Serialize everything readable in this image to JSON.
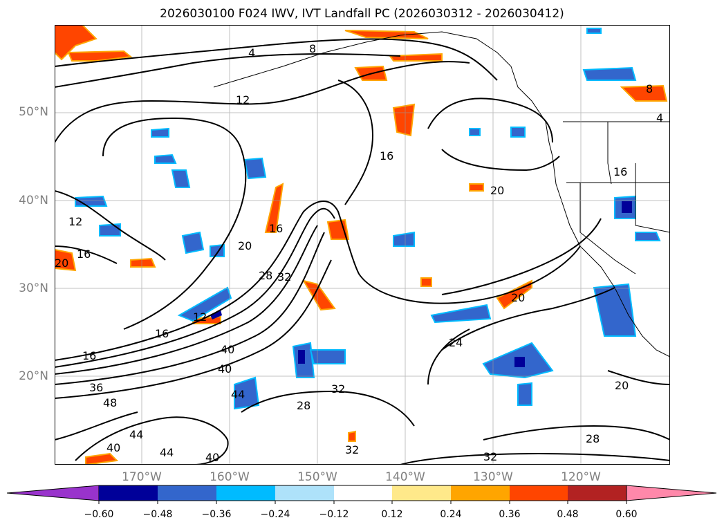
{
  "title": "2026030100 F024 IWV, IVT Landfall PC (2026030312 - 2026030412)",
  "map": {
    "lat_labels": [
      "50°N",
      "40°N",
      "30°N",
      "20°N"
    ],
    "lon_labels": [
      "170°W",
      "160°W",
      "150°W",
      "140°W",
      "130°W",
      "120°W"
    ],
    "contour_labels": [
      "4",
      "8",
      "12",
      "16",
      "20",
      "24",
      "28",
      "32",
      "36",
      "40",
      "44",
      "48"
    ],
    "colors": {
      "neg": [
        "#9933cc",
        "#000099",
        "#3366cc",
        "#00bbff",
        "#aee2fa"
      ],
      "zero": "#ffffff",
      "pos": [
        "#ffe98a",
        "#ffa500",
        "#ff4500",
        "#b22222",
        "#ff88aa"
      ]
    }
  },
  "colorbar": {
    "ticks": [
      "−0.60",
      "−0.48",
      "−0.36",
      "−0.24",
      "−0.12",
      "0.12",
      "0.24",
      "0.36",
      "0.48",
      "0.60"
    ],
    "colors": [
      "#9933cc",
      "#000099",
      "#3366cc",
      "#00bbff",
      "#aee2fa",
      "#ffffff",
      "#ffe98a",
      "#ffa500",
      "#ff4500",
      "#b22222",
      "#ff88aa"
    ]
  }
}
